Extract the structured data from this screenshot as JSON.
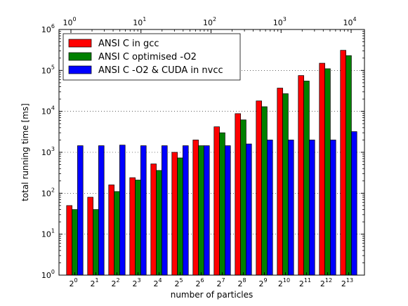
{
  "chart_data": {
    "type": "bar",
    "xlabel": "number of particles",
    "ylabel": "total running time [ms]",
    "categories": [
      "2^0",
      "2^1",
      "2^2",
      "2^3",
      "2^4",
      "2^5",
      "2^6",
      "2^7",
      "2^8",
      "2^9",
      "2^10",
      "2^11",
      "2^12",
      "2^13"
    ],
    "category_bases": [
      "2",
      "2",
      "2",
      "2",
      "2",
      "2",
      "2",
      "2",
      "2",
      "2",
      "2",
      "2",
      "2",
      "2"
    ],
    "category_exponents": [
      "0",
      "1",
      "2",
      "3",
      "4",
      "5",
      "6",
      "7",
      "8",
      "9",
      "10",
      "11",
      "12",
      "13"
    ],
    "yscale": "log",
    "ylim": [
      1,
      1000000
    ],
    "y_ticks": [
      {
        "base": "10",
        "exp": "0",
        "value": 1
      },
      {
        "base": "10",
        "exp": "1",
        "value": 10
      },
      {
        "base": "10",
        "exp": "2",
        "value": 100
      },
      {
        "base": "10",
        "exp": "3",
        "value": 1000
      },
      {
        "base": "10",
        "exp": "4",
        "value": 10000
      },
      {
        "base": "10",
        "exp": "5",
        "value": 100000
      },
      {
        "base": "10",
        "exp": "6",
        "value": 1000000
      }
    ],
    "top_axis": {
      "scale": "log",
      "ticks": [
        {
          "base": "10",
          "exp": "0",
          "value": 1
        },
        {
          "base": "10",
          "exp": "1",
          "value": 10
        },
        {
          "base": "10",
          "exp": "2",
          "value": 100
        },
        {
          "base": "10",
          "exp": "3",
          "value": 1000
        },
        {
          "base": "10",
          "exp": "4",
          "value": 10000
        }
      ]
    },
    "grid": "horizontal-dotted",
    "legend_position": "top-left",
    "series": [
      {
        "name": "ANSI C in gcc",
        "color": "#ff0000",
        "values": [
          50,
          80,
          160,
          240,
          520,
          1000,
          2000,
          4200,
          8800,
          18000,
          37000,
          75000,
          150000,
          310000
        ]
      },
      {
        "name": "ANSI C optimised -O2",
        "color": "#008000",
        "values": [
          40,
          40,
          110,
          210,
          360,
          730,
          1450,
          3000,
          6200,
          13000,
          27000,
          55000,
          110000,
          230000
        ]
      },
      {
        "name": "ANSI C -O2 & CUDA in nvcc",
        "color": "#0000ff",
        "values": [
          1450,
          1450,
          1500,
          1450,
          1450,
          1450,
          1450,
          1450,
          1600,
          2000,
          2000,
          2000,
          2000,
          3200
        ]
      }
    ]
  }
}
